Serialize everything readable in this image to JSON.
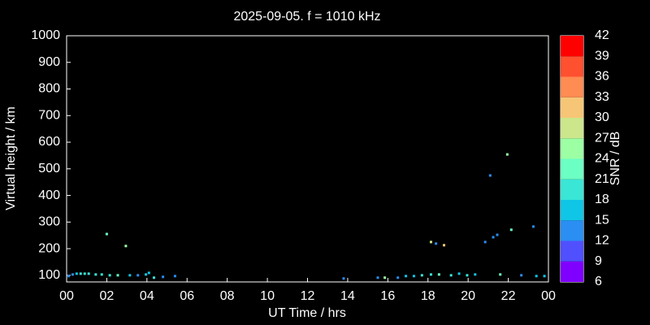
{
  "chart_data": {
    "type": "scatter",
    "title": "2025-09-05. f = 1010 kHz",
    "xlabel": "UT Time / hrs",
    "ylabel": "Virtual height / km",
    "xlim": [
      0,
      24
    ],
    "xticks": [
      {
        "value": 0,
        "label": "00"
      },
      {
        "value": 2,
        "label": "02"
      },
      {
        "value": 4,
        "label": "04"
      },
      {
        "value": 6,
        "label": "06"
      },
      {
        "value": 8,
        "label": "08"
      },
      10,
      12,
      14,
      16,
      18,
      20,
      22,
      {
        "value": 24,
        "label": "00"
      }
    ],
    "ylim": [
      75,
      1000
    ],
    "yticks": [
      100,
      200,
      300,
      400,
      500,
      600,
      700,
      800,
      900,
      1000
    ],
    "x": [
      0.1,
      0.3,
      0.5,
      0.7,
      0.9,
      1.1,
      1.45,
      1.75,
      2.0,
      2.15,
      2.55,
      2.95,
      3.15,
      3.55,
      3.95,
      4.1,
      4.35,
      4.8,
      5.4,
      13.8,
      15.5,
      15.85,
      16.5,
      16.9,
      17.3,
      17.7,
      18.15,
      18.15,
      18.4,
      18.55,
      18.8,
      19.15,
      19.55,
      19.95,
      20.35,
      20.85,
      21.1,
      21.25,
      21.45,
      21.6,
      21.95,
      22.15,
      22.65,
      23.25,
      23.4,
      23.8
    ],
    "values": [
      97,
      103,
      106,
      106,
      106,
      106,
      103,
      103,
      255,
      100,
      100,
      210,
      100,
      100,
      103,
      109,
      91,
      94,
      97,
      88,
      91,
      91,
      91,
      97,
      97,
      100,
      225,
      103,
      219,
      103,
      213,
      100,
      106,
      100,
      103,
      225,
      475,
      243,
      252,
      103,
      554,
      271,
      100,
      283,
      97,
      97
    ],
    "snr": [
      12,
      12,
      15,
      18,
      18,
      18,
      18,
      18,
      21,
      18,
      21,
      24,
      15,
      12,
      15,
      15,
      18,
      12,
      12,
      12,
      12,
      24,
      12,
      15,
      15,
      18,
      27,
      18,
      12,
      21,
      30,
      18,
      15,
      18,
      15,
      12,
      12,
      12,
      12,
      21,
      24,
      21,
      12,
      12,
      15,
      15
    ],
    "colorbar": {
      "label": "SNR / dB",
      "ticks": [
        6,
        9,
        12,
        15,
        18,
        21,
        24,
        27,
        30,
        33,
        36,
        39,
        42
      ],
      "colors": [
        "#7f00ff",
        "#5050ff",
        "#2a8ef2",
        "#10c6e6",
        "#3ae6d6",
        "#6cffc4",
        "#9cffa4",
        "#cce68c",
        "#f6c676",
        "#ff8c52",
        "#ff5030",
        "#ff0000"
      ]
    }
  }
}
